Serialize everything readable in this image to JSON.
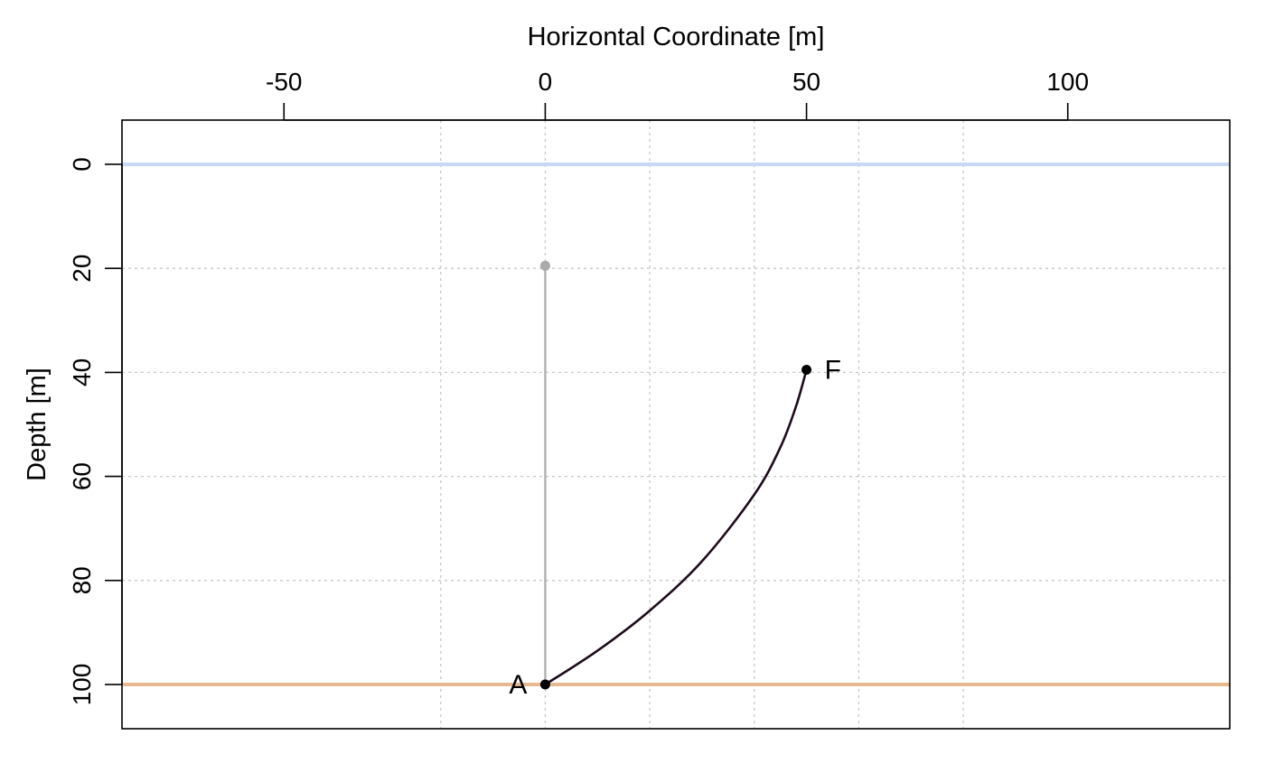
{
  "chart_data": {
    "type": "line",
    "title": "",
    "xlabel": "Horizontal Coordinate [m]",
    "ylabel": "Depth [m]",
    "xlim": [
      -81,
      131
    ],
    "ylim": [
      -8.5,
      108.5
    ],
    "y_inverted": true,
    "x_axis_position": "top",
    "x_ticks": [
      -50,
      0,
      50,
      100
    ],
    "x_tick_labels": [
      "-50",
      "0",
      "50",
      "100"
    ],
    "y_ticks": [
      0,
      20,
      40,
      60,
      80,
      100
    ],
    "y_tick_labels": [
      "0",
      "20",
      "40",
      "60",
      "80",
      "100"
    ],
    "x_gridlines": [
      -20,
      0,
      20,
      40,
      60,
      80
    ],
    "y_gridlines": [
      20,
      40,
      60,
      80
    ],
    "grid": true,
    "surface_line": {
      "y": 0,
      "color": "#c9d9f5"
    },
    "bottom_line": {
      "y": 100,
      "color": "#e8b98e"
    },
    "series": [
      {
        "kind": "reference_vertical",
        "color": "#aaaaaa",
        "x": [
          0,
          0
        ],
        "y": [
          19.5,
          100
        ]
      },
      {
        "kind": "path",
        "color": "#1e0a1a",
        "x": [
          0,
          10,
          20,
          30,
          40,
          45,
          48,
          50
        ],
        "y": [
          100,
          93.5,
          85.8,
          76.3,
          63.5,
          54.4,
          46.5,
          39.5
        ]
      }
    ],
    "points": [
      {
        "label": "A",
        "x": 0,
        "y": 100,
        "color": "#000000",
        "label_side": "left"
      },
      {
        "label": "F",
        "x": 50,
        "y": 39.5,
        "color": "#000000",
        "label_side": "right"
      },
      {
        "label": "",
        "x": 0,
        "y": 19.5,
        "color": "#aaaaaa",
        "label_side": "none"
      }
    ]
  }
}
